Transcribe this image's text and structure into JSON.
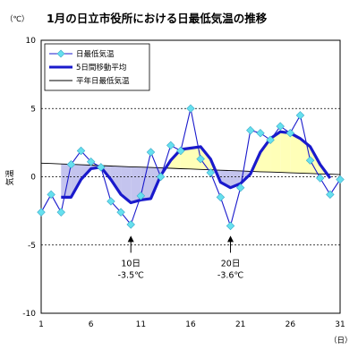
{
  "chart_data": {
    "type": "line",
    "title": "1月の日立市役所における日最低気温の推移",
    "yunit": "（℃）",
    "ylabel": "気温",
    "xunit": "（日）",
    "ylim": [
      -10,
      10
    ],
    "xlim": [
      1,
      31
    ],
    "yticks": [
      10,
      5,
      0,
      -5,
      -10
    ],
    "xticks": [
      1,
      6,
      11,
      16,
      21,
      26,
      31
    ],
    "grid": "dashed horizontal lines at 5, 0, -5",
    "legend_position": "top-left",
    "x": [
      1,
      2,
      3,
      4,
      5,
      6,
      7,
      8,
      9,
      10,
      11,
      12,
      13,
      14,
      15,
      16,
      17,
      18,
      19,
      20,
      21,
      22,
      23,
      24,
      25,
      26,
      27,
      28,
      29,
      30,
      31
    ],
    "series": [
      {
        "name": "日最低気温",
        "color": "#66e0ee",
        "marker": "diamond",
        "values": [
          -2.6,
          -1.3,
          -2.6,
          0.9,
          1.9,
          1.1,
          0.7,
          -1.8,
          -2.6,
          -3.5,
          -1.4,
          1.8,
          0.0,
          2.3,
          1.9,
          5.0,
          1.3,
          0.3,
          -1.5,
          -3.6,
          -0.8,
          3.4,
          3.2,
          2.7,
          3.7,
          3.2,
          4.5,
          1.2,
          -0.1,
          -1.3,
          -0.2
        ]
      },
      {
        "name": "5日間移動平均",
        "color": "#1a1acc",
        "values": [
          null,
          null,
          -1.5,
          -1.5,
          -0.2,
          0.6,
          0.7,
          -0.2,
          -1.3,
          -1.9,
          -1.7,
          -1.6,
          0.1,
          1.2,
          2.0,
          2.1,
          2.2,
          1.3,
          -0.4,
          -0.8,
          -0.5,
          0.2,
          1.8,
          2.8,
          3.3,
          3.2,
          2.8,
          2.2,
          0.9,
          -0.1,
          null
        ]
      },
      {
        "name": "平年日最低気温",
        "color": "#000000",
        "values": [
          1.0,
          0.97,
          0.94,
          0.91,
          0.88,
          0.85,
          0.82,
          0.79,
          0.76,
          0.73,
          0.71,
          0.68,
          0.65,
          0.62,
          0.59,
          0.57,
          0.54,
          0.51,
          0.48,
          0.45,
          0.43,
          0.4,
          0.37,
          0.35,
          0.32,
          0.29,
          0.27,
          0.24,
          0.21,
          0.19,
          0.16
        ]
      }
    ],
    "shading": {
      "warm_color": "#ffffb8",
      "cold_color": "#c4c4ee"
    },
    "annotations": [
      {
        "x": 10,
        "date": "10日",
        "value": "-3.5℃"
      },
      {
        "x": 20,
        "date": "20日",
        "value": "-3.6℃"
      }
    ]
  }
}
